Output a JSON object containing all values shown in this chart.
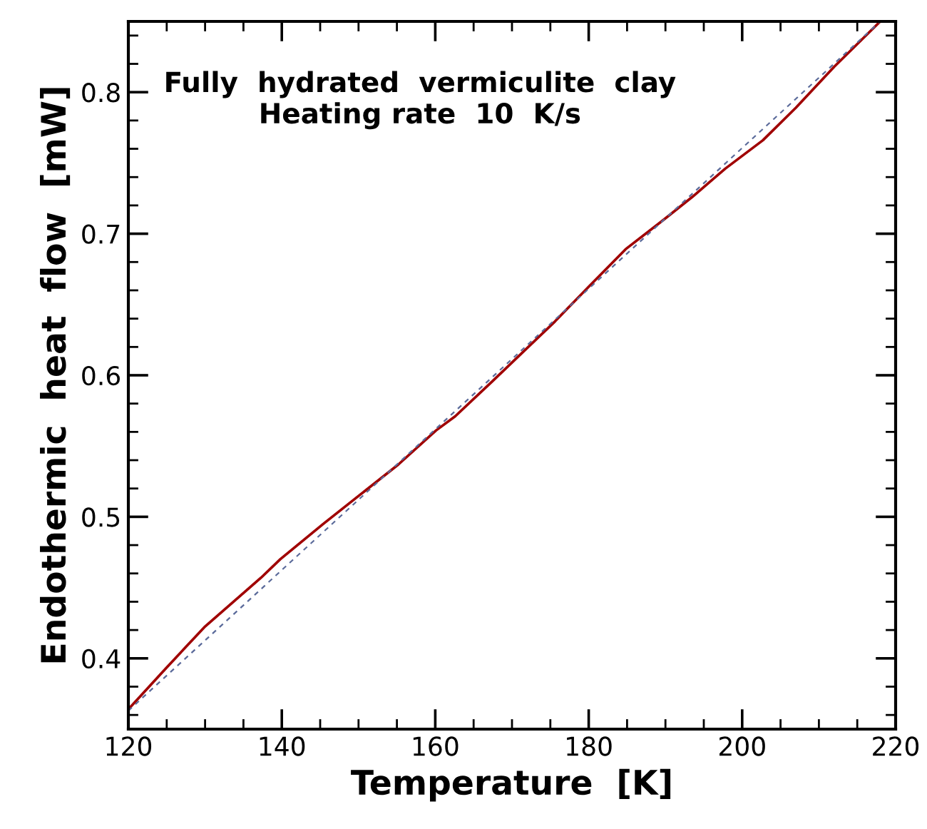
{
  "chart_data": {
    "type": "line",
    "xlabel": "Temperature  [K]",
    "ylabel": "Endothermic  heat  flow  [mW]",
    "annotations": [
      "Fully  hydrated  vermiculite  clay\nHeating rate  10  K/s"
    ],
    "series": [
      {
        "color": "#a00000",
        "line_style": "solid",
        "x": [
          120,
          124.9,
          129.9,
          137.3,
          139.8,
          145.4,
          150.3,
          155.2,
          160.1,
          162.6,
          167.5,
          170.0,
          175.6,
          179.9,
          184.8,
          189.8,
          193.5,
          197.8,
          202.7,
          207.0,
          212.0,
          218.0
        ],
        "values": [
          0.364,
          0.393,
          0.422,
          0.457,
          0.47,
          0.495,
          0.516,
          0.537,
          0.561,
          0.571,
          0.596,
          0.609,
          0.638,
          0.662,
          0.689,
          0.71,
          0.726,
          0.746,
          0.766,
          0.789,
          0.818,
          0.85
        ]
      },
      {
        "color": "#5a6a9a",
        "line_style": "dashed",
        "x": [
          120,
          218
        ],
        "values": [
          0.363,
          0.85
        ]
      }
    ],
    "xlim": [
      120,
      220
    ],
    "ylim": [
      0.35,
      0.85
    ],
    "xticks": [
      120,
      140,
      160,
      180,
      200,
      220
    ],
    "yticks": [
      0.4,
      0.5,
      0.6,
      0.7,
      0.8
    ],
    "grid": false,
    "legend": false,
    "marker": "none"
  }
}
